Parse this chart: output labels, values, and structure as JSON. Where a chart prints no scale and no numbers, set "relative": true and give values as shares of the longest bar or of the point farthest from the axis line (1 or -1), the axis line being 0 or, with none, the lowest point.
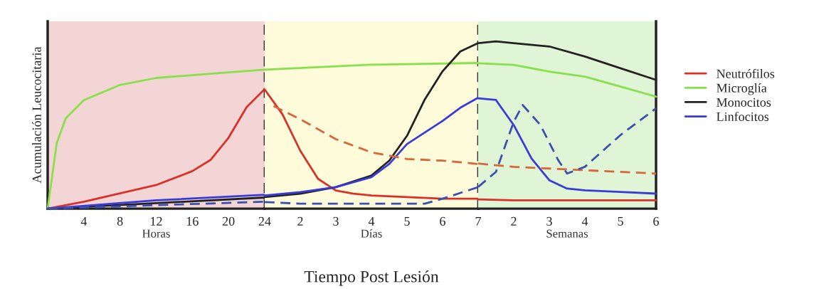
{
  "chart_data": [
    {
      "type": "line",
      "relative": true,
      "ylabel": "Acumulación Leucocitaria",
      "xlabel": "Horas",
      "xlim": [
        0,
        24
      ],
      "xticks": [
        4,
        8,
        12,
        16,
        20,
        24
      ],
      "bands": [
        {
          "axis": "x",
          "from": 0,
          "to": 24,
          "color": "#f3d5d5"
        }
      ],
      "ref_lines": [
        {
          "axis": "x",
          "value": 24,
          "color": "#333333",
          "line_style": "dashed"
        }
      ],
      "grid": false,
      "marker": "none",
      "series": [
        {
          "color": "#d9302a",
          "line_style": "solid",
          "x": [
            0,
            4,
            8,
            12,
            16,
            18,
            20,
            22,
            24
          ],
          "values": [
            0,
            0.05,
            0.11,
            0.17,
            0.27,
            0.35,
            0.51,
            0.73,
            0.86
          ]
        },
        {
          "color": "#88e04a",
          "line_style": "solid",
          "x": [
            0,
            1,
            2,
            4,
            8,
            12,
            16,
            20,
            24
          ],
          "values": [
            0,
            0.47,
            0.65,
            0.78,
            0.89,
            0.94,
            0.96,
            0.98,
            1
          ]
        },
        {
          "color": "#222222",
          "line_style": "solid",
          "x": [
            0,
            12,
            24
          ],
          "values": [
            0,
            0.04,
            0.08
          ]
        },
        {
          "color": "#3a3adb",
          "line_style": "solid",
          "x": [
            0,
            12,
            24
          ],
          "values": [
            0,
            0.06,
            0.1
          ]
        },
        {
          "color": "#3a4fb0",
          "line_style": "dashed",
          "x": [
            0,
            24
          ],
          "values": [
            0,
            0.05
          ]
        }
      ]
    },
    {
      "type": "line",
      "relative": true,
      "xlabel": "Días",
      "xlim": [
        1,
        7
      ],
      "xticks": [
        2,
        3,
        4,
        5,
        6,
        7
      ],
      "annotations": [
        "Tiempo Post Lesión"
      ],
      "bands": [
        {
          "axis": "x",
          "from": 1,
          "to": 7,
          "color": "#fdfbd9"
        }
      ],
      "ref_lines": [
        {
          "axis": "x",
          "value": 7,
          "color": "#333333",
          "line_style": "dashed"
        }
      ],
      "grid": false,
      "marker": "none",
      "series": [
        {
          "color": "#d9302a",
          "line_style": "solid",
          "x": [
            1,
            1.5,
            2,
            2.5,
            3,
            3.5,
            4,
            5,
            6,
            7
          ],
          "values": [
            0.72,
            0.57,
            0.35,
            0.18,
            0.11,
            0.09,
            0.08,
            0.07,
            0.06,
            0.06
          ]
        },
        {
          "color": "#88e04a",
          "line_style": "solid",
          "x": [
            1,
            4,
            7
          ],
          "values": [
            0.84,
            0.87,
            0.88
          ]
        },
        {
          "color": "#222222",
          "line_style": "solid",
          "x": [
            1,
            2,
            3,
            4,
            4.5,
            5,
            5.5,
            6,
            6.5,
            7
          ],
          "values": [
            0.07,
            0.09,
            0.13,
            0.2,
            0.29,
            0.44,
            0.66,
            0.83,
            0.95,
            1
          ]
        },
        {
          "color": "#3a3adb",
          "line_style": "solid",
          "x": [
            1,
            2,
            3,
            4,
            4.5,
            5,
            6,
            6.5,
            7
          ],
          "values": [
            0.08,
            0.1,
            0.13,
            0.19,
            0.27,
            0.39,
            0.53,
            0.61,
            0.67
          ]
        },
        {
          "color": "#d8663c",
          "line_style": "dashed",
          "x": [
            1.25,
            2,
            3,
            4,
            5,
            6,
            7
          ],
          "values": [
            0.62,
            0.54,
            0.42,
            0.34,
            0.3,
            0.29,
            0.27
          ]
        },
        {
          "color": "#3a4fb0",
          "line_style": "dashed",
          "x": [
            1,
            2,
            4,
            5.5,
            6,
            7
          ],
          "values": [
            0.04,
            0.03,
            0.03,
            0.03,
            0.06,
            0.13
          ]
        }
      ]
    },
    {
      "type": "line",
      "relative": true,
      "xlabel": "Semanas",
      "xlim": [
        1,
        6
      ],
      "xticks": [
        2,
        3,
        4,
        5,
        6
      ],
      "bands": [
        {
          "axis": "x",
          "from": 1,
          "to": 6,
          "color": "#e0f4d6"
        }
      ],
      "legend": "right",
      "grid": false,
      "marker": "none",
      "series": [
        {
          "name": "Neutrófilos",
          "color": "#d9302a",
          "line_style": "solid",
          "x": [
            1,
            2,
            3,
            4,
            5,
            6
          ],
          "values": [
            0.055,
            0.05,
            0.05,
            0.05,
            0.05,
            0.05
          ]
        },
        {
          "name": "Microglía",
          "color": "#88e04a",
          "line_style": "solid",
          "x": [
            1,
            2,
            3,
            4,
            5,
            6
          ],
          "values": [
            0.87,
            0.86,
            0.82,
            0.79,
            0.73,
            0.67
          ]
        },
        {
          "name": "Monocitos",
          "color": "#222222",
          "line_style": "solid",
          "x": [
            1,
            1.5,
            2,
            3,
            4,
            5,
            6
          ],
          "values": [
            0.99,
            1,
            0.99,
            0.97,
            0.91,
            0.84,
            0.77
          ]
        },
        {
          "name": "Linfocitos",
          "color": "#3a3adb",
          "line_style": "solid",
          "x": [
            1,
            1.5,
            2,
            2.5,
            3,
            3.5,
            4,
            5,
            6
          ],
          "values": [
            0.66,
            0.65,
            0.5,
            0.3,
            0.17,
            0.12,
            0.11,
            0.1,
            0.09
          ]
        },
        {
          "color": "#d8663c",
          "line_style": "dashed",
          "x": [
            1,
            2,
            3,
            4,
            5,
            6
          ],
          "values": [
            0.27,
            0.25,
            0.24,
            0.23,
            0.22,
            0.21
          ]
        },
        {
          "color": "#3a4fb0",
          "line_style": "dashed",
          "x": [
            1,
            1.5,
            2,
            2.25,
            2.75,
            3.25,
            3.5,
            4,
            5,
            6
          ],
          "values": [
            0.13,
            0.22,
            0.52,
            0.62,
            0.5,
            0.29,
            0.21,
            0.25,
            0.44,
            0.6
          ]
        }
      ]
    }
  ]
}
